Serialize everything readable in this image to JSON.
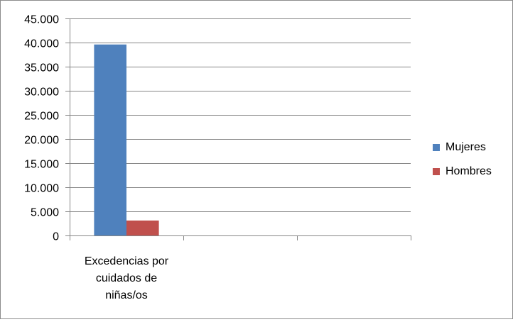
{
  "chart_data": {
    "type": "bar",
    "title": "",
    "xlabel": "",
    "ylabel": "",
    "categories": [
      "Excedencias por cuidados de niñas/os",
      "",
      ""
    ],
    "category_lines": [
      [
        "Excedencias por",
        "cuidados de",
        "niñas/os"
      ],
      [],
      []
    ],
    "series": [
      {
        "name": "Mujeres",
        "values": [
          39600,
          null,
          null
        ],
        "color": "#4f81bd"
      },
      {
        "name": "Hombres",
        "values": [
          3100,
          null,
          null
        ],
        "color": "#c0504d"
      }
    ],
    "ylim": [
      0,
      45000
    ],
    "yticks": [
      0,
      5000,
      10000,
      15000,
      20000,
      25000,
      30000,
      35000,
      40000,
      45000
    ],
    "ytick_labels": [
      "0",
      "5.000",
      "10.000",
      "15.000",
      "20.000",
      "25.000",
      "30.000",
      "35.000",
      "40.000",
      "45.000"
    ],
    "grid": true,
    "legend_position": "right",
    "colors": {
      "gridline": "#868686",
      "axis": "#868686",
      "frame_border": "#8c8c8c"
    }
  }
}
